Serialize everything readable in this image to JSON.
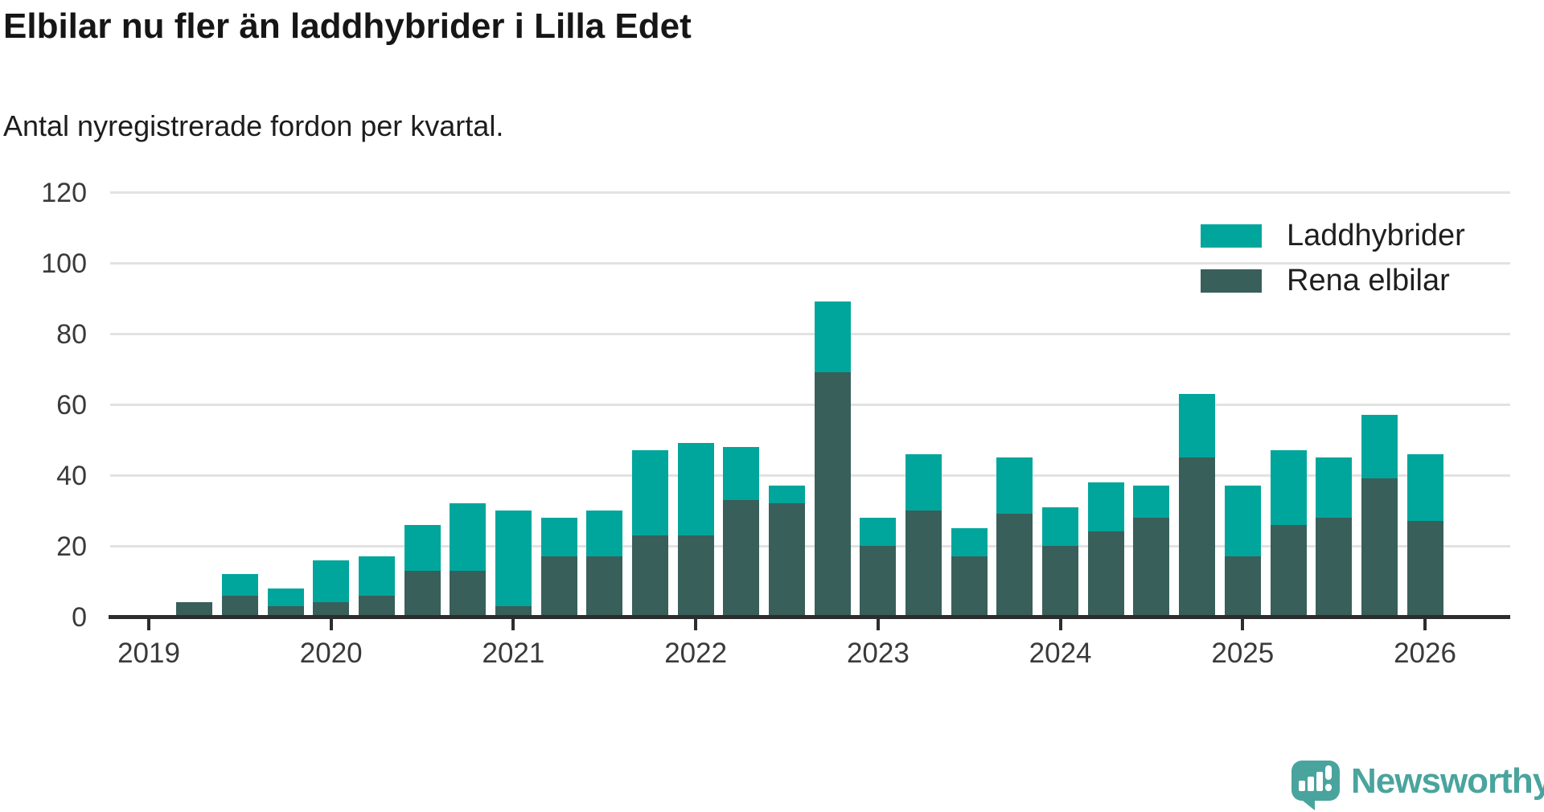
{
  "header": {
    "title": "Elbilar nu fler än laddhybrider i Lilla Edet",
    "subtitle": "Antal nyregistrerade fordon per kvartal."
  },
  "colors": {
    "laddhybrider": "#00A69B",
    "rena_elbilar": "#395F5A",
    "logo_teal": "#4AA49E",
    "axis": "#2d2d2d",
    "gridline": "#e2e2e2",
    "axis_text": "#3a3a3a"
  },
  "legend": {
    "position": "top-right",
    "items": [
      {
        "label": "Laddhybrider",
        "color_key": "laddhybrider"
      },
      {
        "label": "Rena elbilar",
        "color_key": "rena_elbilar"
      }
    ]
  },
  "chart_data": {
    "type": "bar",
    "stacked": true,
    "title": "Elbilar nu fler än laddhybrider i Lilla Edet",
    "subtitle": "Antal nyregistrerade fordon per kvartal.",
    "xlabel": "",
    "ylabel": "",
    "ylim": [
      0,
      120
    ],
    "yticks": [
      0,
      20,
      40,
      60,
      80,
      100,
      120
    ],
    "x_ticks_years": [
      2019,
      2020,
      2021,
      2022,
      2023,
      2024,
      2025,
      2026
    ],
    "grid": "horizontal",
    "series_order_bottom_to_top": [
      "Rena elbilar",
      "Laddhybrider"
    ],
    "quarters": [
      {
        "year": 2019,
        "quarter": 2,
        "rena_elbilar": 4,
        "laddhybrider": 0
      },
      {
        "year": 2019,
        "quarter": 3,
        "rena_elbilar": 6,
        "laddhybrider": 6
      },
      {
        "year": 2019,
        "quarter": 4,
        "rena_elbilar": 3,
        "laddhybrider": 5
      },
      {
        "year": 2020,
        "quarter": 1,
        "rena_elbilar": 4,
        "laddhybrider": 12
      },
      {
        "year": 2020,
        "quarter": 2,
        "rena_elbilar": 6,
        "laddhybrider": 11
      },
      {
        "year": 2020,
        "quarter": 3,
        "rena_elbilar": 13,
        "laddhybrider": 13
      },
      {
        "year": 2020,
        "quarter": 4,
        "rena_elbilar": 13,
        "laddhybrider": 19
      },
      {
        "year": 2021,
        "quarter": 1,
        "rena_elbilar": 3,
        "laddhybrider": 27
      },
      {
        "year": 2021,
        "quarter": 2,
        "rena_elbilar": 17,
        "laddhybrider": 11
      },
      {
        "year": 2021,
        "quarter": 3,
        "rena_elbilar": 17,
        "laddhybrider": 13
      },
      {
        "year": 2021,
        "quarter": 4,
        "rena_elbilar": 23,
        "laddhybrider": 24
      },
      {
        "year": 2022,
        "quarter": 1,
        "rena_elbilar": 23,
        "laddhybrider": 26
      },
      {
        "year": 2022,
        "quarter": 2,
        "rena_elbilar": 33,
        "laddhybrider": 15
      },
      {
        "year": 2022,
        "quarter": 3,
        "rena_elbilar": 32,
        "laddhybrider": 5
      },
      {
        "year": 2022,
        "quarter": 4,
        "rena_elbilar": 69,
        "laddhybrider": 20
      },
      {
        "year": 2023,
        "quarter": 1,
        "rena_elbilar": 20,
        "laddhybrider": 8
      },
      {
        "year": 2023,
        "quarter": 2,
        "rena_elbilar": 30,
        "laddhybrider": 16
      },
      {
        "year": 2023,
        "quarter": 3,
        "rena_elbilar": 17,
        "laddhybrider": 8
      },
      {
        "year": 2023,
        "quarter": 4,
        "rena_elbilar": 29,
        "laddhybrider": 16
      },
      {
        "year": 2024,
        "quarter": 1,
        "rena_elbilar": 20,
        "laddhybrider": 11
      },
      {
        "year": 2024,
        "quarter": 2,
        "rena_elbilar": 24,
        "laddhybrider": 14
      },
      {
        "year": 2024,
        "quarter": 3,
        "rena_elbilar": 28,
        "laddhybrider": 9
      },
      {
        "year": 2024,
        "quarter": 4,
        "rena_elbilar": 45,
        "laddhybrider": 18
      },
      {
        "year": 2025,
        "quarter": 1,
        "rena_elbilar": 17,
        "laddhybrider": 20
      },
      {
        "year": 2025,
        "quarter": 2,
        "rena_elbilar": 26,
        "laddhybrider": 21
      },
      {
        "year": 2025,
        "quarter": 3,
        "rena_elbilar": 28,
        "laddhybrider": 17
      },
      {
        "year": 2025,
        "quarter": 4,
        "rena_elbilar": 39,
        "laddhybrider": 18
      },
      {
        "year": 2026,
        "quarter": 1,
        "rena_elbilar": 27,
        "laddhybrider": 19
      }
    ]
  },
  "logo": {
    "text": "Newsworthy"
  }
}
